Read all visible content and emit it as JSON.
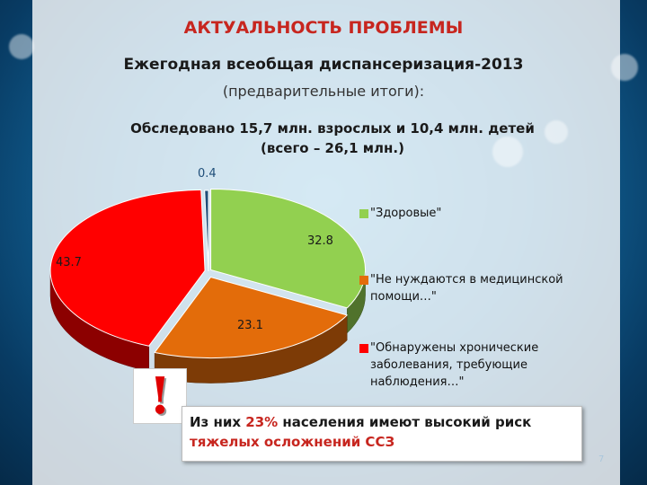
{
  "header": {
    "title": "АКТУАЛЬНОСТЬ ПРОБЛЕМЫ",
    "subtitle_line1": "Ежегодная всеобщая диспансеризация-2013",
    "subtitle_line2": "(предварительные итоги):",
    "stats_line1": "Обследовано 15,7 млн. взрослых и 10,4 млн. детей",
    "stats_line2": "(всего – 26,1 млн.)"
  },
  "chart_data": {
    "type": "pie",
    "title": "",
    "slices": [
      {
        "name": "\"Здоровые\"",
        "value": 32.8,
        "color": "#92d050"
      },
      {
        "name": "\"Не нуждаются в медицинской помощи…\"",
        "value": 23.1,
        "color": "#e36c0a"
      },
      {
        "name": "\"Обнаружены хронические заболевания, требующие наблюдения…\"",
        "value": 43.7,
        "color": "#ff0000"
      },
      {
        "name": "",
        "value": 0.4,
        "color": "#1f4e79"
      }
    ],
    "legend_position": "right"
  },
  "warning": {
    "icon": "exclamation-icon",
    "glyph": "!",
    "prefix": "Из них ",
    "highlight": "23%",
    "middle": " населения имеют высокий риск ",
    "end": "тяжелых осложнений ССЗ"
  },
  "slide_number": "7"
}
